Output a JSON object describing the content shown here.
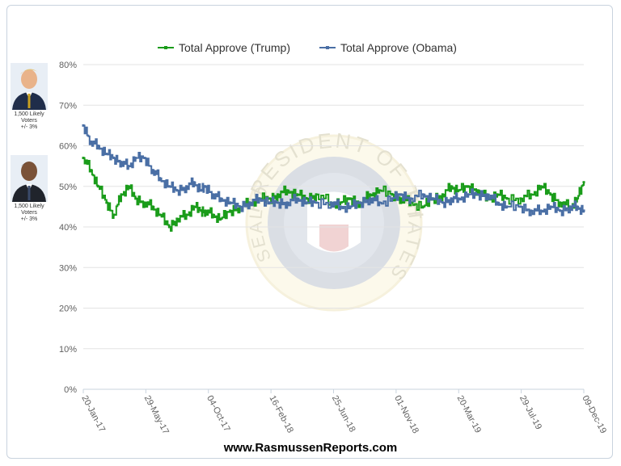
{
  "chart_data": {
    "type": "line",
    "title": "",
    "xlabel": "",
    "ylabel": "",
    "ylim": [
      0,
      80
    ],
    "y_ticks": [
      "0%",
      "10%",
      "20%",
      "30%",
      "40%",
      "50%",
      "60%",
      "70%",
      "80%"
    ],
    "y_tick_values": [
      0,
      10,
      20,
      30,
      40,
      50,
      60,
      70,
      80
    ],
    "x_tick_labels": [
      "20-Jan-17",
      "29-May-17",
      "04-Oct-17",
      "16-Feb-18",
      "25-Jun-18",
      "01-Nov-18",
      "20-Mar-19",
      "29-Jul-19",
      "09-Dec-19"
    ],
    "x_range": [
      "2017-01-20",
      "2019-12-09"
    ],
    "grid": true,
    "legend_position": "top-center",
    "series": [
      {
        "name": "Total Approve (Trump)",
        "color": "#1a9c1a",
        "points": [
          [
            "2017-01-20",
            57
          ],
          [
            "2017-02-05",
            54
          ],
          [
            "2017-02-20",
            50
          ],
          [
            "2017-03-10",
            46
          ],
          [
            "2017-03-25",
            43
          ],
          [
            "2017-04-10",
            48
          ],
          [
            "2017-04-25",
            50
          ],
          [
            "2017-05-10",
            47
          ],
          [
            "2017-05-29",
            46
          ],
          [
            "2017-06-15",
            45
          ],
          [
            "2017-06-30",
            43
          ],
          [
            "2017-07-20",
            40
          ],
          [
            "2017-08-05",
            42
          ],
          [
            "2017-08-25",
            43
          ],
          [
            "2017-09-10",
            45
          ],
          [
            "2017-09-25",
            44
          ],
          [
            "2017-10-04",
            44
          ],
          [
            "2017-10-20",
            43
          ],
          [
            "2017-11-05",
            42
          ],
          [
            "2017-11-25",
            44
          ],
          [
            "2017-12-15",
            45
          ],
          [
            "2018-01-05",
            46
          ],
          [
            "2018-01-25",
            47
          ],
          [
            "2018-02-16",
            47
          ],
          [
            "2018-03-05",
            48
          ],
          [
            "2018-03-25",
            49
          ],
          [
            "2018-04-15",
            48
          ],
          [
            "2018-05-05",
            47
          ],
          [
            "2018-05-25",
            48
          ],
          [
            "2018-06-25",
            46
          ],
          [
            "2018-07-15",
            46
          ],
          [
            "2018-08-05",
            47
          ],
          [
            "2018-08-25",
            46
          ],
          [
            "2018-09-15",
            48
          ],
          [
            "2018-10-05",
            49
          ],
          [
            "2018-11-01",
            48
          ],
          [
            "2018-11-20",
            47
          ],
          [
            "2018-12-10",
            46
          ],
          [
            "2019-01-05",
            45
          ],
          [
            "2019-01-25",
            47
          ],
          [
            "2019-02-15",
            48
          ],
          [
            "2019-03-05",
            50
          ],
          [
            "2019-03-20",
            49
          ],
          [
            "2019-04-10",
            50
          ],
          [
            "2019-04-30",
            49
          ],
          [
            "2019-05-20",
            47
          ],
          [
            "2019-06-10",
            48
          ],
          [
            "2019-06-30",
            47
          ],
          [
            "2019-07-29",
            47
          ],
          [
            "2019-08-20",
            48
          ],
          [
            "2019-09-10",
            50
          ],
          [
            "2019-09-30",
            48
          ],
          [
            "2019-10-20",
            46
          ],
          [
            "2019-11-10",
            45
          ],
          [
            "2019-11-25",
            47
          ],
          [
            "2019-12-09",
            51
          ]
        ]
      },
      {
        "name": "Total Approve (Obama)",
        "color": "#4a6fa5",
        "points": [
          [
            "2017-01-20",
            65
          ],
          [
            "2017-02-05",
            61
          ],
          [
            "2017-02-20",
            60
          ],
          [
            "2017-03-10",
            58
          ],
          [
            "2017-03-25",
            57
          ],
          [
            "2017-04-10",
            56
          ],
          [
            "2017-04-25",
            55
          ],
          [
            "2017-05-10",
            57
          ],
          [
            "2017-05-29",
            57
          ],
          [
            "2017-06-15",
            54
          ],
          [
            "2017-06-30",
            52
          ],
          [
            "2017-07-20",
            50
          ],
          [
            "2017-08-05",
            49
          ],
          [
            "2017-08-25",
            50
          ],
          [
            "2017-09-10",
            51
          ],
          [
            "2017-09-25",
            49
          ],
          [
            "2017-10-04",
            50
          ],
          [
            "2017-10-20",
            48
          ],
          [
            "2017-11-05",
            47
          ],
          [
            "2017-11-25",
            46
          ],
          [
            "2017-12-15",
            45
          ],
          [
            "2018-01-05",
            46
          ],
          [
            "2018-01-25",
            47
          ],
          [
            "2018-02-16",
            46
          ],
          [
            "2018-03-05",
            46
          ],
          [
            "2018-03-25",
            46
          ],
          [
            "2018-04-15",
            47
          ],
          [
            "2018-05-05",
            46
          ],
          [
            "2018-05-25",
            46
          ],
          [
            "2018-06-25",
            46
          ],
          [
            "2018-07-15",
            45
          ],
          [
            "2018-08-05",
            45
          ],
          [
            "2018-08-25",
            46
          ],
          [
            "2018-09-15",
            47
          ],
          [
            "2018-10-05",
            46
          ],
          [
            "2018-11-01",
            47
          ],
          [
            "2018-11-20",
            48
          ],
          [
            "2018-12-10",
            47
          ],
          [
            "2019-01-05",
            48
          ],
          [
            "2019-01-25",
            47
          ],
          [
            "2019-02-15",
            46
          ],
          [
            "2019-03-05",
            47
          ],
          [
            "2019-03-20",
            47
          ],
          [
            "2019-04-10",
            48
          ],
          [
            "2019-04-30",
            48
          ],
          [
            "2019-05-20",
            48
          ],
          [
            "2019-06-10",
            46
          ],
          [
            "2019-06-30",
            45
          ],
          [
            "2019-07-29",
            45
          ],
          [
            "2019-08-20",
            44
          ],
          [
            "2019-09-10",
            44
          ],
          [
            "2019-09-30",
            45
          ],
          [
            "2019-10-20",
            44
          ],
          [
            "2019-11-10",
            45
          ],
          [
            "2019-11-25",
            45
          ],
          [
            "2019-12-09",
            44
          ]
        ]
      }
    ]
  },
  "sidebar": {
    "trump": {
      "caption_line1": "1,500 Likely",
      "caption_line2": "Voters",
      "caption_line3": "+/- 3%"
    },
    "obama": {
      "caption_line1": "1,500 Likely",
      "caption_line2": "Voters",
      "caption_line3": "+/- 3%"
    }
  },
  "footer": {
    "url": "www.RasmussenReports.com"
  },
  "seal": {
    "top_text": "PRESIDENT OF THE UNITED",
    "side_text": "SEAL OF THE",
    "right_text": "STATES"
  }
}
